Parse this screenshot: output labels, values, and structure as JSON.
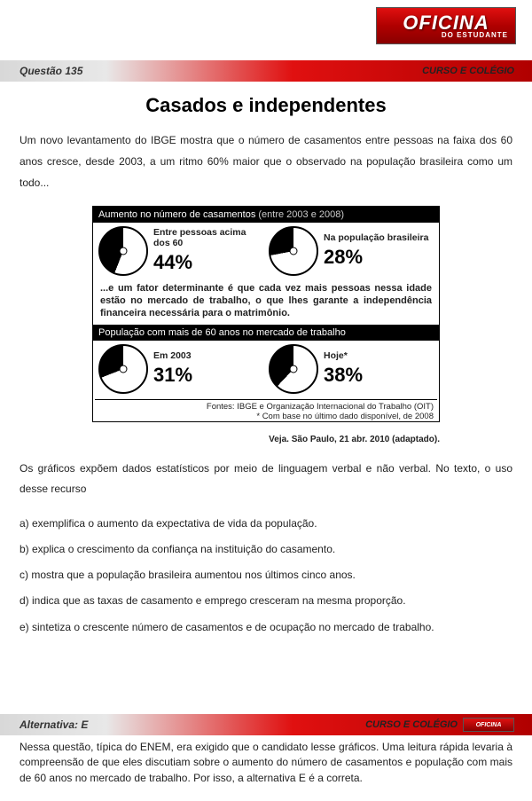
{
  "logo": {
    "brand": "OFICINA",
    "sub": "DO ESTUDANTE"
  },
  "header_bar": {
    "left": "Questão 135",
    "right": "CURSO E COLÉGIO"
  },
  "title": "Casados e independentes",
  "intro": "Um novo levantamento do IBGE mostra que o número de casamentos entre pessoas na faixa dos 60 anos cresce, desde 2003, a um ritmo 60% maior que o observado na população brasileira como um todo...",
  "infographic": {
    "section1": {
      "header_main": "Aumento no número de casamentos",
      "header_light": "(entre 2003 e 2008)",
      "pies": [
        {
          "caption": "Entre pessoas acima dos 60",
          "value": "44%",
          "pct": 44,
          "colors": {
            "fill": "#000000",
            "empty": "#ffffff"
          }
        },
        {
          "caption": "Na população brasileira",
          "value": "28%",
          "pct": 28,
          "colors": {
            "fill": "#000000",
            "empty": "#ffffff"
          }
        }
      ]
    },
    "mid_text": "...e um fator determinante é que cada vez mais pessoas nessa idade estão no mercado de trabalho, o que lhes garante a independência financeira necessária para o matrimônio.",
    "section2": {
      "header_main": "População com mais de 60 anos no mercado de trabalho",
      "pies": [
        {
          "caption": "Em 2003",
          "value": "31%",
          "pct": 31,
          "colors": {
            "fill": "#000000",
            "empty": "#ffffff"
          }
        },
        {
          "caption": "Hoje*",
          "value": "38%",
          "pct": 38,
          "colors": {
            "fill": "#000000",
            "empty": "#ffffff"
          }
        }
      ]
    },
    "footer": "Fontes: IBGE e Organização Internacional do Trabalho (OIT)\n* Com base no último dado disponível, de 2008"
  },
  "source_line": "Veja. São Paulo, 21 abr. 2010 (adaptado).",
  "stem": "Os gráficos expõem dados estatísticos por meio de linguagem verbal e não verbal. No texto, o uso desse recurso",
  "options": {
    "a": "a) exemplifica o aumento da expectativa de vida da população.",
    "b": "b) explica o crescimento da confiança na instituição do casamento.",
    "c": "c) mostra que a população brasileira aumentou nos últimos cinco anos.",
    "d": "d) indica que as taxas de casamento e emprego cresceram na mesma proporção.",
    "e": "e) sintetiza o crescente número de casamentos e de ocupação no mercado de trabalho."
  },
  "answer_bar": {
    "left": "Alternativa: E",
    "right": "CURSO E COLÉGIO"
  },
  "answer_text": "Nessa questão, típica do ENEM, era exigido que o candidato lesse gráficos. Uma leitura rápida levaria à compreensão de que eles discutiam sobre o aumento do número de casamentos e população com mais de 60 anos no mercado de trabalho. Por isso, a alternativa E é a correta.",
  "colors": {
    "brand_red_top": "#e01010",
    "brand_red_bottom": "#8a0000",
    "bar_grey": "#d8d8d8",
    "text": "#222222",
    "black": "#000000",
    "white": "#ffffff"
  }
}
